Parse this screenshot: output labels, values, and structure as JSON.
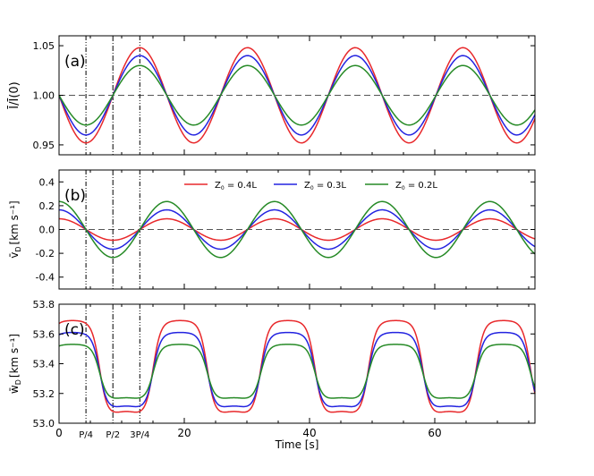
{
  "chart_data": [
    {
      "type": "line",
      "panel_label": "(a)",
      "ylabel_main": "Ī/Ī(0)",
      "ylabel_sub": "",
      "ylabel_tail": "",
      "ylim": [
        0.94,
        1.06
      ],
      "yticks": [
        0.95,
        1.0,
        1.05
      ],
      "ytick_labels": [
        "0.95",
        "1.00",
        "1.05"
      ],
      "reference_line": 1.0,
      "mean": 1.0,
      "shape": "sin",
      "series": [
        {
          "name": "Z0 = 0.4L",
          "color": "#e8282b",
          "amplitude": 0.048
        },
        {
          "name": "Z0 = 0.3L",
          "color": "#2323e0",
          "amplitude": 0.04
        },
        {
          "name": "Z0 = 0.2L",
          "color": "#268a26",
          "amplitude": 0.03
        }
      ]
    },
    {
      "type": "line",
      "panel_label": "(b)",
      "ylabel_main": "v̄",
      "ylabel_sub": "D",
      "ylabel_tail": "[km s⁻¹]",
      "ylim": [
        -0.5,
        0.5
      ],
      "yticks": [
        -0.4,
        -0.2,
        0.0,
        0.2,
        0.4
      ],
      "ytick_labels": [
        "-0.4",
        "-0.2",
        "0.0",
        "0.2",
        "0.4"
      ],
      "reference_line": 0.0,
      "mean": 0.0,
      "shape": "cos",
      "series": [
        {
          "name": "Z0 = 0.4L",
          "color": "#e8282b",
          "amplitude": 0.09
        },
        {
          "name": "Z0 = 0.3L",
          "color": "#2323e0",
          "amplitude": 0.165
        },
        {
          "name": "Z0 = 0.2L",
          "color": "#268a26",
          "amplitude": 0.235
        }
      ]
    },
    {
      "type": "line",
      "panel_label": "(c)",
      "ylabel_main": "w̄",
      "ylabel_sub": "D",
      "ylabel_tail": "[km s⁻¹]",
      "ylim": [
        53.0,
        53.8
      ],
      "yticks": [
        53.0,
        53.2,
        53.4,
        53.6,
        53.8
      ],
      "ytick_labels": [
        "53.0",
        "53.2",
        "53.4",
        "53.6",
        "53.8"
      ],
      "shape": "flat-top",
      "series": [
        {
          "name": "Z0 = 0.4L",
          "color": "#e8282b",
          "top": 53.69,
          "bottom": 53.06
        },
        {
          "name": "Z0 = 0.3L",
          "color": "#2323e0",
          "top": 53.61,
          "bottom": 53.1
        },
        {
          "name": "Z0 = 0.2L",
          "color": "#268a26",
          "top": 53.53,
          "bottom": 53.16
        }
      ]
    }
  ],
  "x_axis": {
    "label": "Time [s]",
    "xlim": [
      0,
      76
    ],
    "period": 17.2,
    "ticks": [
      0,
      20,
      40,
      60
    ],
    "tick_labels": [
      "0",
      "20",
      "40",
      "60"
    ],
    "marker_lines": [
      {
        "label": "P/4",
        "x": 4.3
      },
      {
        "label": "P/2",
        "x": 8.6
      },
      {
        "label": "3P/4",
        "x": 12.9
      }
    ]
  },
  "legend": {
    "placement": "top of panel (b)",
    "entries": [
      {
        "main": "Z",
        "sub": "0",
        "tail": " = 0.4L",
        "color": "#e8282b"
      },
      {
        "main": "Z",
        "sub": "0",
        "tail": " = 0.3L",
        "color": "#2323e0"
      },
      {
        "main": "Z",
        "sub": "0",
        "tail": " = 0.2L",
        "color": "#268a26"
      }
    ]
  }
}
